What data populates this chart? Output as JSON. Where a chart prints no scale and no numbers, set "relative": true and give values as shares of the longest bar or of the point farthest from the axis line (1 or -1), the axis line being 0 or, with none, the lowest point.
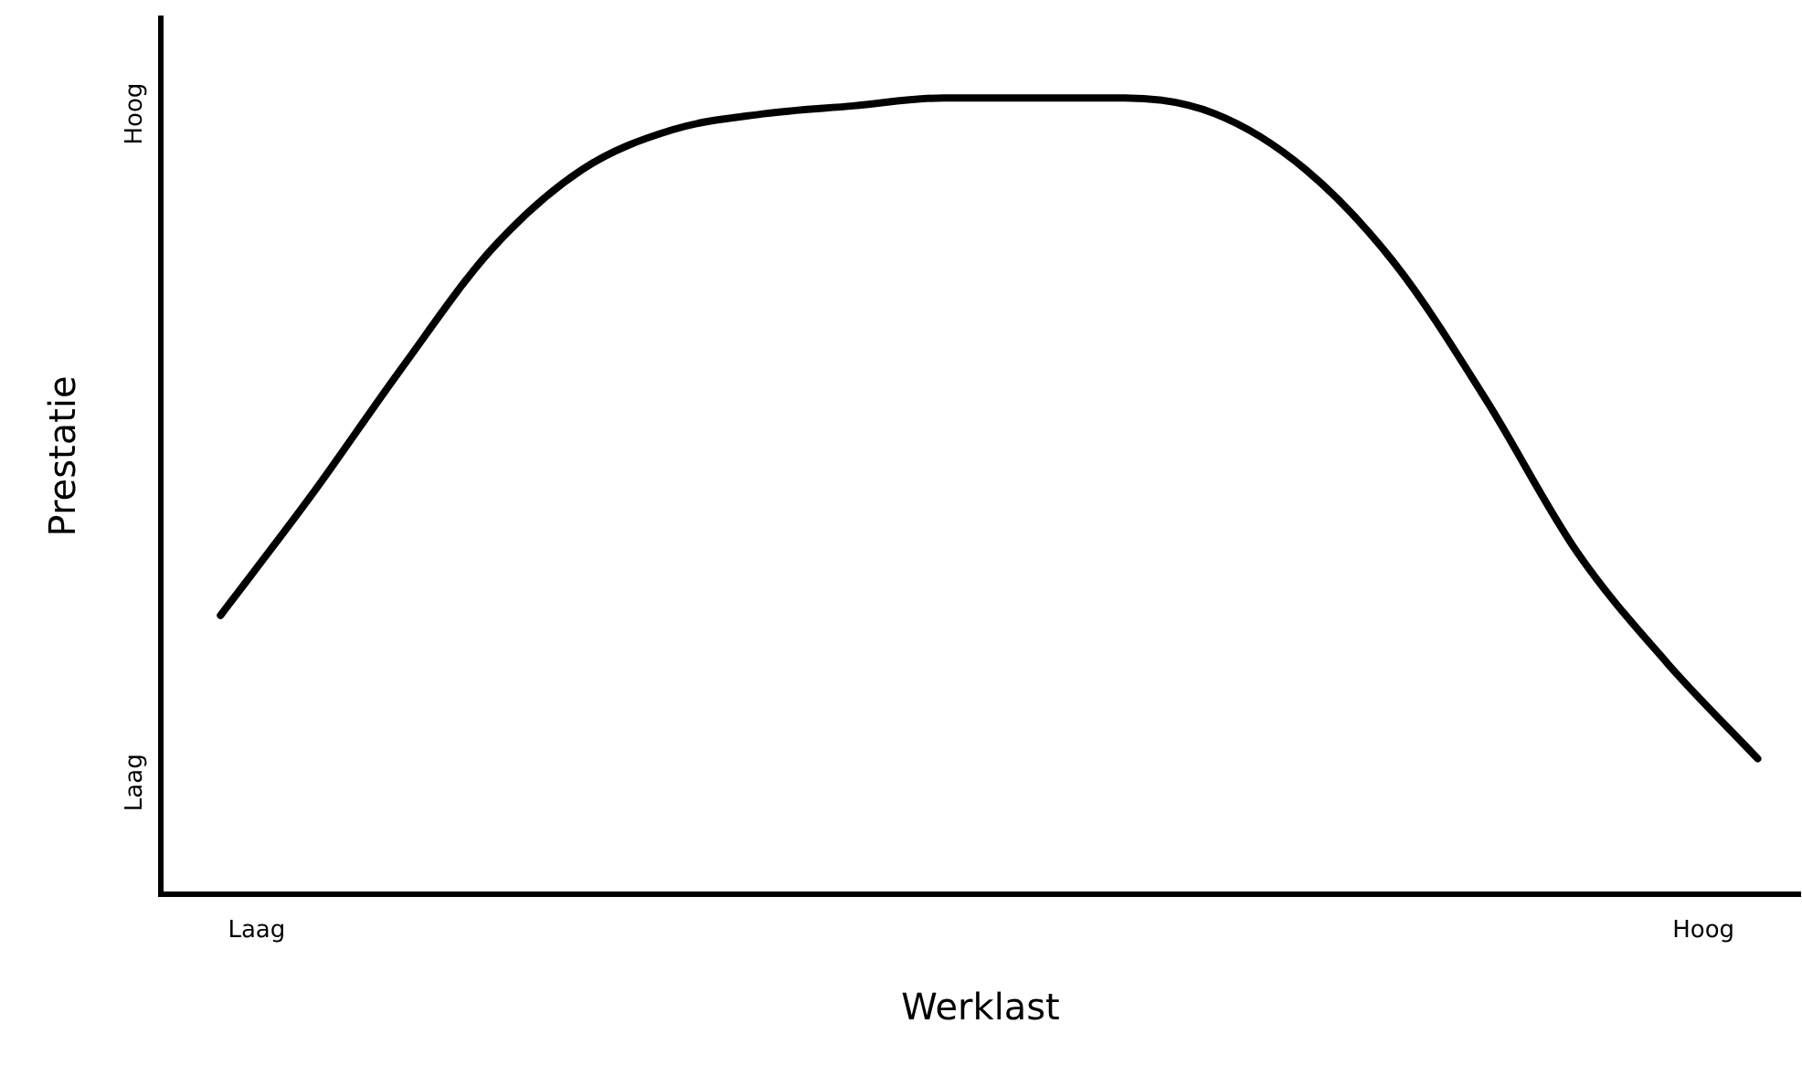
{
  "chart_data": {
    "type": "line",
    "relative": true,
    "xlabel": "Werklast",
    "ylabel": "Prestatie",
    "categories": [
      null,
      null,
      null,
      null,
      null,
      null,
      null,
      null,
      null,
      null,
      null,
      null,
      null,
      null,
      null,
      null,
      null,
      null
    ],
    "series": [
      {
        "color": "#000000",
        "values": [
          0.35,
          0.5,
          0.66,
          0.81,
          0.91,
          0.96,
          0.98,
          0.99,
          1.0,
          1.0,
          1.0,
          0.98,
          0.91,
          0.79,
          0.62,
          0.43,
          0.29,
          0.17
        ]
      }
    ],
    "annotations": [
      "Laag",
      "Hoog",
      "Laag",
      "Hoog"
    ],
    "grid": false,
    "legend": false,
    "marker": "none",
    "line_style": "solid"
  }
}
